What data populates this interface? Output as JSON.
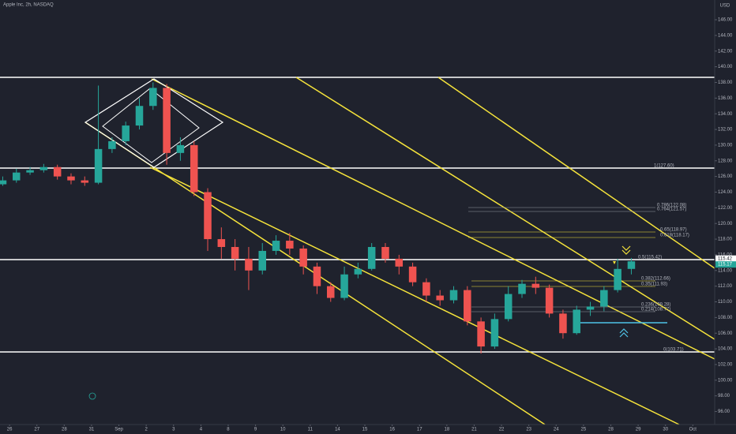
{
  "chart_data": {
    "type": "candlestick",
    "title": "Apple Inc, 2h, NASDAQ",
    "currency": "USD",
    "up_color": "#26a69a",
    "down_color": "#ef5350",
    "grid": false,
    "xlim": [
      -0.35,
      25.8
    ],
    "xticks": [
      {
        "value": 0,
        "label": "26"
      },
      {
        "value": 1,
        "label": "27"
      },
      {
        "value": 2,
        "label": "28"
      },
      {
        "value": 3,
        "label": "31"
      },
      {
        "value": 4,
        "label": "Sep"
      },
      {
        "value": 5,
        "label": "2"
      },
      {
        "value": 6,
        "label": "3"
      },
      {
        "value": 7,
        "label": "4"
      },
      {
        "value": 8,
        "label": "8"
      },
      {
        "value": 9,
        "label": "9"
      },
      {
        "value": 10,
        "label": "10"
      },
      {
        "value": 11,
        "label": "11"
      },
      {
        "value": 12,
        "label": "14"
      },
      {
        "value": 13,
        "label": "15"
      },
      {
        "value": 14,
        "label": "16"
      },
      {
        "value": 15,
        "label": "17"
      },
      {
        "value": 16,
        "label": "18"
      },
      {
        "value": 17,
        "label": "21"
      },
      {
        "value": 18,
        "label": "22"
      },
      {
        "value": 19,
        "label": "23"
      },
      {
        "value": 20,
        "label": "24"
      },
      {
        "value": 21,
        "label": "25"
      },
      {
        "value": 22,
        "label": "28"
      },
      {
        "value": 23,
        "label": "29"
      },
      {
        "value": 24,
        "label": "30"
      },
      {
        "value": 25,
        "label": "Oct"
      }
    ],
    "ylim": [
      94.34,
      148.52
    ],
    "yticks": [
      {
        "value": 96,
        "label": "96.00"
      },
      {
        "value": 98,
        "label": "98.00"
      },
      {
        "value": 100,
        "label": "100.00"
      },
      {
        "value": 102,
        "label": "102.00"
      },
      {
        "value": 104,
        "label": "104.00"
      },
      {
        "value": 106,
        "label": "106.00"
      },
      {
        "value": 108,
        "label": "108.00"
      },
      {
        "value": 110,
        "label": "110.00"
      },
      {
        "value": 112,
        "label": "112.00"
      },
      {
        "value": 114,
        "label": "114.00"
      },
      {
        "value": 116,
        "label": "116.00"
      },
      {
        "value": 118,
        "label": "118.00"
      },
      {
        "value": 120,
        "label": "120.00"
      },
      {
        "value": 122,
        "label": "122.00"
      },
      {
        "value": 124,
        "label": "124.00"
      },
      {
        "value": 126,
        "label": "126.00"
      },
      {
        "value": 128,
        "label": "128.00"
      },
      {
        "value": 130,
        "label": "130.00"
      },
      {
        "value": 132,
        "label": "132.00"
      },
      {
        "value": 134,
        "label": "134.00"
      },
      {
        "value": 136,
        "label": "136.00"
      },
      {
        "value": 138,
        "label": "138.00"
      },
      {
        "value": 140,
        "label": "140.00"
      },
      {
        "value": 142,
        "label": "142.00"
      },
      {
        "value": 144,
        "label": "144.00"
      },
      {
        "value": 146,
        "label": "146.00"
      }
    ],
    "x": [
      -0.25,
      0.25,
      0.75,
      1.25,
      1.75,
      2.25,
      2.75,
      3.25,
      3.75,
      4.25,
      4.75,
      5.25,
      5.75,
      6.25,
      6.75,
      7.25,
      7.75,
      8.25,
      8.75,
      9.25,
      9.75,
      10.25,
      10.75,
      11.25,
      11.75,
      12.25,
      12.75,
      13.25,
      13.75,
      14.25,
      14.75,
      15.25,
      15.75,
      16.25,
      16.75,
      17.25,
      17.75,
      18.25,
      18.75,
      19.25,
      19.75,
      20.25,
      20.75,
      21.25,
      21.75,
      22.25,
      22.75
    ],
    "open": [
      125,
      125.5,
      126.5,
      126.8,
      127.2,
      126,
      125.5,
      125.2,
      129.5,
      130.5,
      132.5,
      135,
      137.3,
      129,
      130,
      124,
      118,
      117,
      115.5,
      114,
      116.5,
      117.8,
      116.8,
      114.5,
      112,
      110.5,
      113.5,
      114.2,
      117,
      115.5,
      114.5,
      112.5,
      110.8,
      110.2,
      111.5,
      107.5,
      104.3,
      107.8,
      111,
      112.3,
      111.8,
      108.5,
      106,
      109,
      109.4,
      111.5,
      114.2
    ],
    "high": [
      126,
      127,
      127.2,
      127.6,
      127.5,
      126.4,
      126,
      137.6,
      131,
      133,
      136,
      138,
      137.8,
      131,
      130.5,
      124.5,
      119.5,
      118,
      117,
      117.5,
      118.5,
      118.8,
      117.2,
      115,
      112.5,
      114.5,
      115,
      117.5,
      117.5,
      116,
      115,
      113,
      111.5,
      112,
      112,
      108,
      108.5,
      112,
      112.8,
      113.2,
      112.2,
      109,
      109.5,
      110,
      112,
      115.5,
      115.6
    ],
    "low": [
      124.8,
      125.2,
      126.2,
      126.5,
      125.6,
      125,
      124.8,
      125,
      129,
      130,
      132,
      134.5,
      127.5,
      128,
      123.5,
      116.5,
      115.5,
      114,
      111.5,
      113.5,
      116,
      116,
      113.5,
      111,
      110,
      110.2,
      113,
      114,
      115,
      113.5,
      112,
      110,
      109.5,
      109.8,
      107,
      103.4,
      104,
      107.5,
      110.5,
      111,
      108,
      105.3,
      105.8,
      108.2,
      108.8,
      111.2,
      113.5
    ],
    "close": [
      125.5,
      126.5,
      126.8,
      127.2,
      126,
      125.5,
      125.2,
      129.5,
      130.5,
      132.5,
      135,
      137.3,
      129,
      130,
      124,
      118,
      117,
      115.5,
      114,
      116.5,
      117.8,
      116.8,
      114.5,
      112,
      110.5,
      113.5,
      114.2,
      117,
      115.5,
      114.5,
      112.5,
      110.8,
      110.2,
      111.5,
      107.5,
      104.3,
      107.8,
      111,
      112.3,
      111.8,
      108.5,
      106,
      109,
      109.4,
      111.5,
      114.2,
      115.17
    ],
    "annotations": [
      "1(127.60)",
      "0.786(122.08)",
      "0.764(121.57)",
      "0.65(118.97)",
      "0.618(118.17)",
      "0.5(115.42)",
      "0.382(112.66)",
      "0.35(111.93)",
      "0.236(109.28)",
      "0.214(108.77)",
      "0(103.71)"
    ],
    "price_tags": [
      115.42,
      115.17
    ]
  }
}
